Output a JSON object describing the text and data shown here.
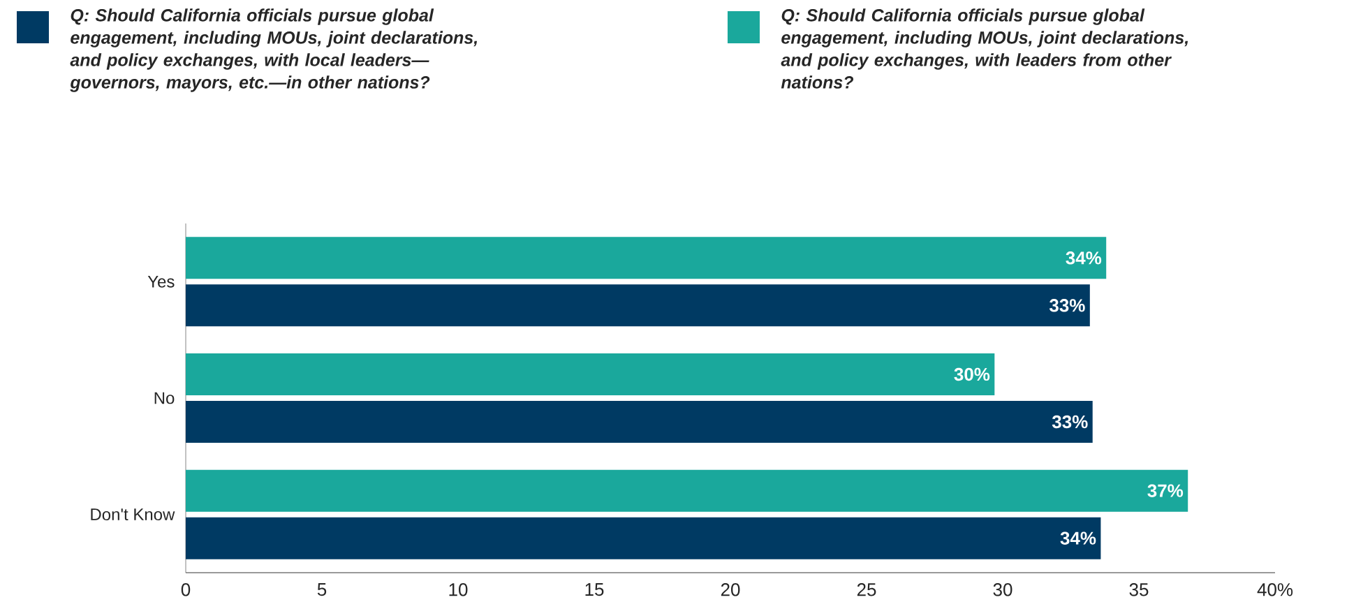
{
  "chart_data": {
    "type": "bar",
    "orientation": "horizontal",
    "categories": [
      "Yes",
      "No",
      "Don't Know"
    ],
    "series": [
      {
        "name": "Q: Should California officials pursue global engagement, including MOUs, joint declarations, and policy exchanges, with local leaders—governors, mayors, etc.—in other nations?",
        "color": "#003a63",
        "values": [
          33.2,
          33.3,
          33.6
        ],
        "value_labels": [
          "33%",
          "33%",
          "34%"
        ]
      },
      {
        "name": "Q: Should California officials pursue global engagement, including MOUs, joint declarations, and policy exchanges, with leaders from other nations?",
        "color": "#1aa89c",
        "values": [
          33.8,
          29.7,
          36.8
        ],
        "value_labels": [
          "34%",
          "30%",
          "37%"
        ]
      }
    ],
    "xlim": [
      0,
      40
    ],
    "xticks": [
      0,
      5,
      10,
      15,
      20,
      25,
      30,
      35,
      {
        "value": 40,
        "label": "40%"
      }
    ],
    "legend": "top"
  }
}
